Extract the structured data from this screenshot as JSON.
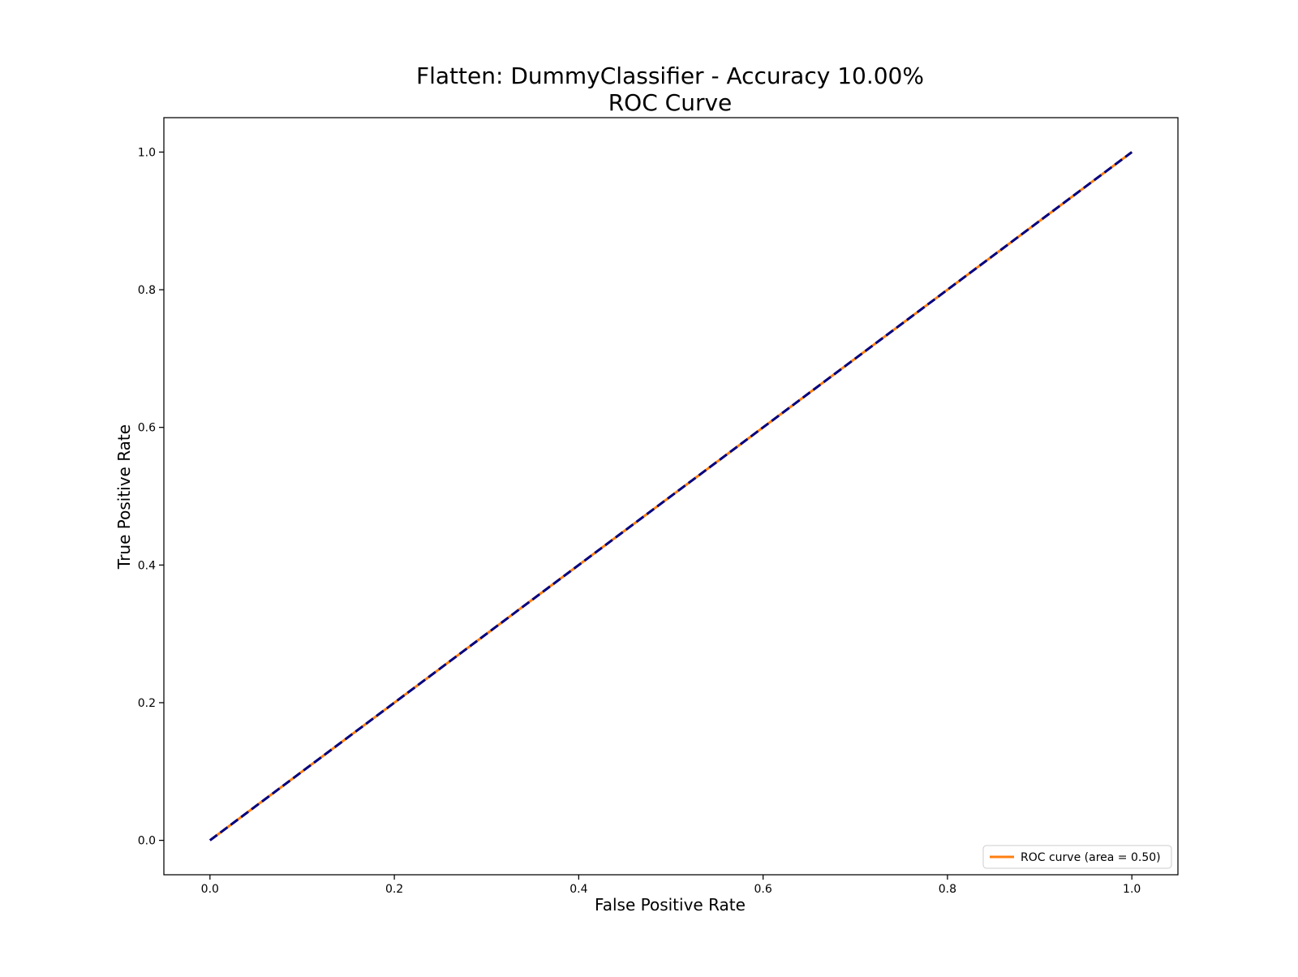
{
  "chart_data": {
    "type": "line",
    "title_line1": "Flatten: DummyClassifier - Accuracy 10.00%",
    "title_line2": "ROC Curve",
    "xlabel": "False Positive Rate",
    "ylabel": "True Positive Rate",
    "xlim": [
      -0.05,
      1.05
    ],
    "ylim": [
      -0.05,
      1.05
    ],
    "xticks": [
      0.0,
      0.2,
      0.4,
      0.6,
      0.8,
      1.0
    ],
    "yticks": [
      0.0,
      0.2,
      0.4,
      0.6,
      0.8,
      1.0
    ],
    "xtick_labels": [
      "0.0",
      "0.2",
      "0.4",
      "0.6",
      "0.8",
      "1.0"
    ],
    "ytick_labels": [
      "0.0",
      "0.2",
      "0.4",
      "0.6",
      "0.8",
      "1.0"
    ],
    "grid": false,
    "legend_position": "lower right",
    "series": [
      {
        "name": "ROC curve (area = 0.50)",
        "color": "#ff7f0e",
        "style": "solid",
        "x": [
          0.0,
          1.0
        ],
        "y": [
          0.0,
          1.0
        ]
      },
      {
        "color": "#000080",
        "style": "dashed",
        "x": [
          0.0,
          1.0
        ],
        "y": [
          0.0,
          1.0
        ]
      }
    ]
  }
}
